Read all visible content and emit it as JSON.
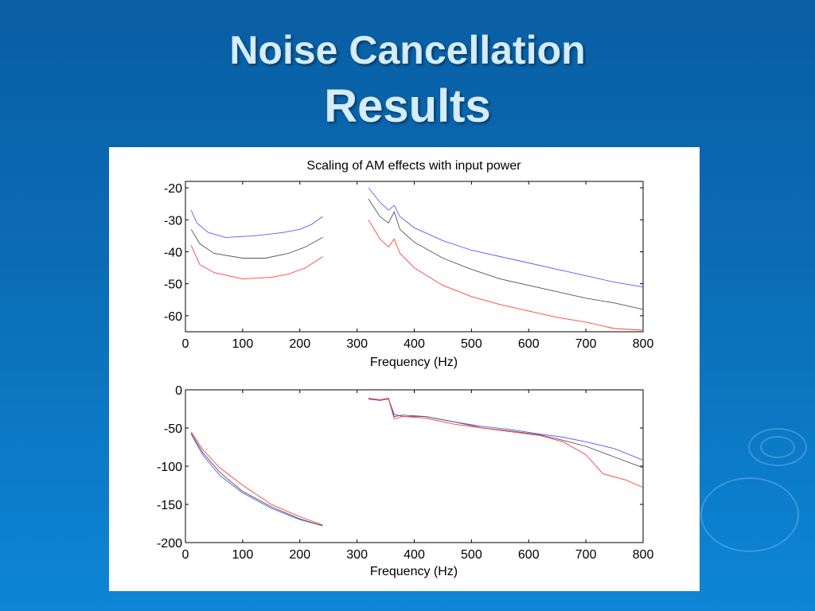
{
  "slide": {
    "title_line1": "Noise Cancellation",
    "title_line2": "Results"
  },
  "colors": {
    "background": "#0b6db6",
    "title": "#d4ecfb",
    "series_blue": "#5a5aff",
    "series_gray": "#555555",
    "series_red": "#ff4040"
  },
  "chart_data": [
    {
      "type": "line",
      "title": "Scaling of AM effects with input power",
      "xlabel": "Frequency (Hz)",
      "ylabel": "",
      "xlim": [
        0,
        800
      ],
      "ylim": [
        -65,
        -18
      ],
      "xticks": [
        0,
        100,
        200,
        300,
        400,
        500,
        600,
        700,
        800
      ],
      "yticks": [
        -20,
        -30,
        -40,
        -50,
        -60
      ],
      "grid": false,
      "legend": "none",
      "series": [
        {
          "color": "blue",
          "segments": [
            [
              [
                10,
                -27
              ],
              [
                20,
                -31
              ],
              [
                40,
                -34
              ],
              [
                70,
                -35.5
              ],
              [
                120,
                -35
              ],
              [
                170,
                -34
              ],
              [
                200,
                -33
              ],
              [
                220,
                -31.5
              ],
              [
                240,
                -29
              ]
            ],
            [
              [
                320,
                -20
              ],
              [
                340,
                -24.5
              ],
              [
                355,
                -27
              ],
              [
                365,
                -25.5
              ],
              [
                375,
                -29
              ],
              [
                400,
                -32.5
              ],
              [
                450,
                -36.5
              ],
              [
                500,
                -39.5
              ],
              [
                550,
                -41.5
              ],
              [
                600,
                -43.5
              ],
              [
                650,
                -45.5
              ],
              [
                700,
                -47.5
              ],
              [
                750,
                -49.5
              ],
              [
                800,
                -51
              ]
            ]
          ]
        },
        {
          "color": "gray",
          "segments": [
            [
              [
                10,
                -33
              ],
              [
                25,
                -37.5
              ],
              [
                50,
                -40.5
              ],
              [
                100,
                -42
              ],
              [
                140,
                -42
              ],
              [
                180,
                -40.5
              ],
              [
                210,
                -38.5
              ],
              [
                240,
                -35.5
              ]
            ],
            [
              [
                320,
                -23.5
              ],
              [
                340,
                -29
              ],
              [
                355,
                -31
              ],
              [
                365,
                -27.5
              ],
              [
                375,
                -33
              ],
              [
                400,
                -37
              ],
              [
                450,
                -42
              ],
              [
                500,
                -45.5
              ],
              [
                550,
                -48.5
              ],
              [
                600,
                -50.5
              ],
              [
                650,
                -52.5
              ],
              [
                700,
                -54.5
              ],
              [
                750,
                -56
              ],
              [
                800,
                -58
              ]
            ]
          ]
        },
        {
          "color": "red",
          "segments": [
            [
              [
                10,
                -38
              ],
              [
                25,
                -44
              ],
              [
                50,
                -46.5
              ],
              [
                100,
                -48.5
              ],
              [
                150,
                -48
              ],
              [
                180,
                -47
              ],
              [
                210,
                -45
              ],
              [
                240,
                -41.5
              ]
            ],
            [
              [
                320,
                -30
              ],
              [
                340,
                -36
              ],
              [
                355,
                -38.5
              ],
              [
                365,
                -36
              ],
              [
                375,
                -40.5
              ],
              [
                400,
                -45
              ],
              [
                450,
                -50.5
              ],
              [
                500,
                -54
              ],
              [
                550,
                -56.5
              ],
              [
                600,
                -58.5
              ],
              [
                650,
                -60.5
              ],
              [
                700,
                -62
              ],
              [
                750,
                -64
              ],
              [
                800,
                -64.5
              ]
            ]
          ]
        }
      ]
    },
    {
      "type": "line",
      "title": "",
      "xlabel": "Frequency (Hz)",
      "ylabel": "",
      "xlim": [
        0,
        800
      ],
      "ylim": [
        -200,
        0
      ],
      "xticks": [
        0,
        100,
        200,
        300,
        400,
        500,
        600,
        700,
        800
      ],
      "yticks": [
        0,
        -50,
        -100,
        -150,
        -200
      ],
      "grid": false,
      "legend": "none",
      "series": [
        {
          "color": "blue",
          "segments": [
            [
              [
                10,
                -58
              ],
              [
                30,
                -85
              ],
              [
                60,
                -112
              ],
              [
                100,
                -135
              ],
              [
                150,
                -155
              ],
              [
                200,
                -170
              ],
              [
                240,
                -178
              ]
            ],
            [
              [
                320,
                -12
              ],
              [
                340,
                -14
              ],
              [
                355,
                -12
              ],
              [
                365,
                -32
              ],
              [
                380,
                -35
              ],
              [
                420,
                -35
              ],
              [
                470,
                -42
              ],
              [
                520,
                -48
              ],
              [
                570,
                -52
              ],
              [
                620,
                -58
              ],
              [
                660,
                -62
              ],
              [
                700,
                -68
              ],
              [
                750,
                -77
              ],
              [
                800,
                -92
              ]
            ]
          ]
        },
        {
          "color": "gray",
          "segments": [
            [
              [
                10,
                -57
              ],
              [
                30,
                -82
              ],
              [
                60,
                -108
              ],
              [
                100,
                -133
              ],
              [
                150,
                -153
              ],
              [
                200,
                -169
              ],
              [
                240,
                -178
              ]
            ],
            [
              [
                320,
                -12
              ],
              [
                340,
                -13
              ],
              [
                355,
                -11
              ],
              [
                365,
                -35
              ],
              [
                380,
                -33
              ],
              [
                420,
                -35
              ],
              [
                470,
                -42
              ],
              [
                520,
                -50
              ],
              [
                570,
                -54
              ],
              [
                620,
                -59
              ],
              [
                660,
                -66
              ],
              [
                700,
                -74
              ],
              [
                750,
                -88
              ],
              [
                800,
                -102
              ]
            ]
          ]
        },
        {
          "color": "red",
          "segments": [
            [
              [
                10,
                -55
              ],
              [
                30,
                -78
              ],
              [
                60,
                -102
              ],
              [
                100,
                -125
              ],
              [
                150,
                -150
              ],
              [
                200,
                -166
              ],
              [
                240,
                -177
              ]
            ],
            [
              [
                320,
                -11
              ],
              [
                340,
                -13
              ],
              [
                355,
                -12
              ],
              [
                365,
                -38
              ],
              [
                380,
                -35
              ],
              [
                420,
                -37
              ],
              [
                470,
                -45
              ],
              [
                520,
                -50
              ],
              [
                570,
                -55
              ],
              [
                620,
                -60
              ],
              [
                660,
                -68
              ],
              [
                700,
                -85
              ],
              [
                730,
                -110
              ],
              [
                770,
                -118
              ],
              [
                800,
                -128
              ]
            ]
          ]
        }
      ]
    }
  ]
}
